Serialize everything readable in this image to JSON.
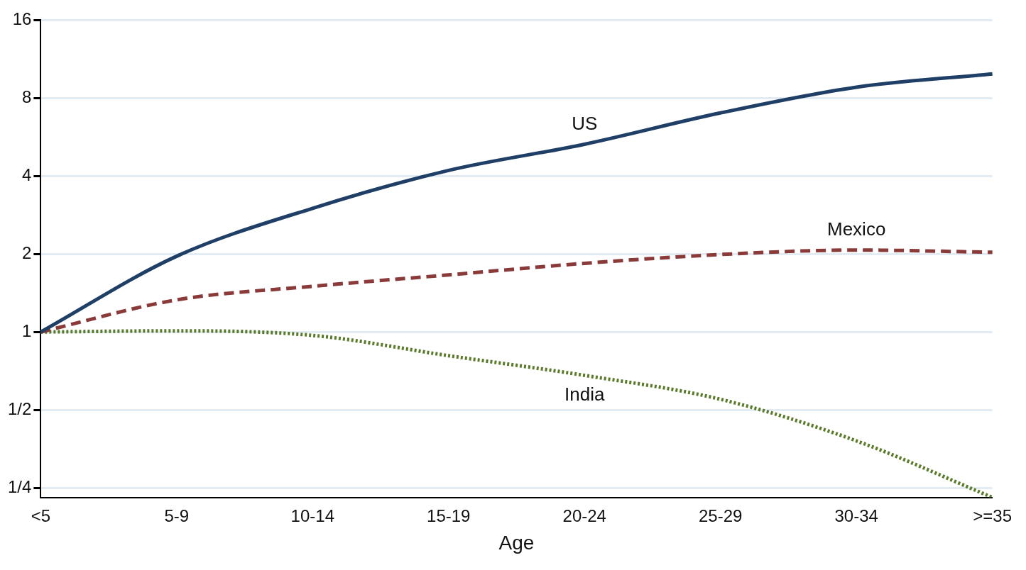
{
  "chart_data": {
    "type": "line",
    "xlabel": "Age",
    "categories": [
      "<5",
      "5-9",
      "10-14",
      "15-19",
      "20-24",
      "25-29",
      "30-34",
      ">=35"
    ],
    "series": [
      {
        "name": "US",
        "color": "#1f3f66",
        "line_style": "solid",
        "values": [
          1,
          1.96,
          3.0,
          4.2,
          5.3,
          7.0,
          8.8,
          9.9
        ]
      },
      {
        "name": "Mexico",
        "color": "#8b3a3a",
        "line_style": "dashed",
        "values": [
          1,
          1.33,
          1.5,
          1.66,
          1.84,
          1.99,
          2.07,
          2.03
        ]
      },
      {
        "name": "India",
        "color": "#5a7a2a",
        "line_style": "dotted",
        "values": [
          1,
          1.01,
          0.97,
          0.81,
          0.68,
          0.55,
          0.38,
          0.23
        ]
      }
    ],
    "log": "y",
    "ylim": [
      0.23,
      16
    ],
    "yticks": [
      {
        "value": 0.25,
        "label": "1/4"
      },
      {
        "value": 0.5,
        "label": "1/2"
      },
      1,
      2,
      4,
      8,
      16
    ],
    "grid": "y",
    "legend": false,
    "marker": "none"
  }
}
